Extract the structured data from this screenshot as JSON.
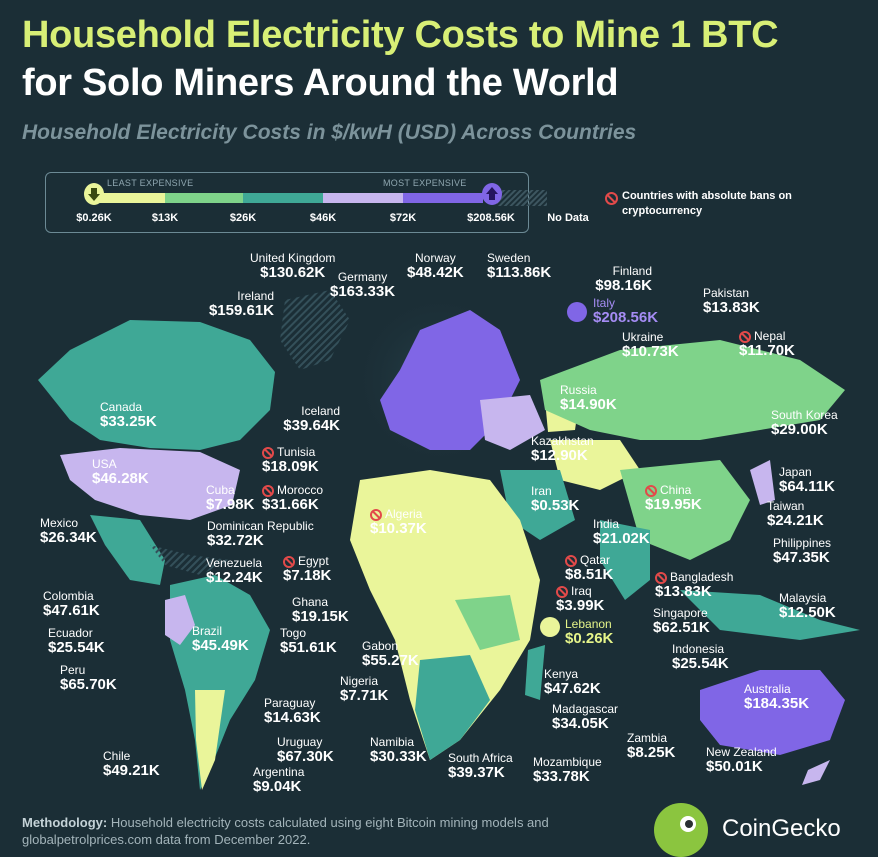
{
  "title_line1": "Household Electricity Costs to Mine 1 BTC",
  "title_line2": "for Solo Miners Around the World",
  "subtitle": "Household Electricity Costs in $/kwH (USD) Across Countries",
  "legend": {
    "least_label": "LEAST EXPENSIVE",
    "most_label": "MOST EXPENSIVE",
    "ticks": [
      "$0.26K",
      "$13K",
      "$26K",
      "$46K",
      "$72K",
      "$208.56K"
    ],
    "no_data": "No Data",
    "ban_note": "Countries with absolute bans on cryptocurrency",
    "colors": [
      "#eaf59a",
      "#7fd38a",
      "#3fa896",
      "#c7b6ee",
      "#8066e6"
    ]
  },
  "countries": [
    {
      "name": "United Kingdom",
      "value": "$130.62K"
    },
    {
      "name": "Germany",
      "value": "$163.33K"
    },
    {
      "name": "Norway",
      "value": "$48.42K"
    },
    {
      "name": "Sweden",
      "value": "$113.86K"
    },
    {
      "name": "Finland",
      "value": "$98.16K"
    },
    {
      "name": "Ireland",
      "value": "$159.61K"
    },
    {
      "name": "Italy",
      "value": "$208.56K"
    },
    {
      "name": "Pakistan",
      "value": "$13.83K"
    },
    {
      "name": "Nepal",
      "value": "$11.70K"
    },
    {
      "name": "Ukraine",
      "value": "$10.73K"
    },
    {
      "name": "Canada",
      "value": "$33.25K"
    },
    {
      "name": "Iceland",
      "value": "$39.64K"
    },
    {
      "name": "Russia",
      "value": "$14.90K"
    },
    {
      "name": "South Korea",
      "value": "$29.00K"
    },
    {
      "name": "Tunisia",
      "value": "$18.09K"
    },
    {
      "name": "Kazakhstan",
      "value": "$12.90K"
    },
    {
      "name": "USA",
      "value": "$46.28K"
    },
    {
      "name": "Japan",
      "value": "$64.11K"
    },
    {
      "name": "Cuba",
      "value": "$7.98K"
    },
    {
      "name": "Morocco",
      "value": "$31.66K"
    },
    {
      "name": "Iran",
      "value": "$0.53K"
    },
    {
      "name": "China",
      "value": "$19.95K"
    },
    {
      "name": "Taiwan",
      "value": "$24.21K"
    },
    {
      "name": "Mexico",
      "value": "$26.34K"
    },
    {
      "name": "Algeria",
      "value": "$10.37K"
    },
    {
      "name": "Dominican Republic",
      "value": "$32.72K"
    },
    {
      "name": "India",
      "value": "$21.02K"
    },
    {
      "name": "Philippines",
      "value": "$47.35K"
    },
    {
      "name": "Venezuela",
      "value": "$12.24K"
    },
    {
      "name": "Egypt",
      "value": "$7.18K"
    },
    {
      "name": "Qatar",
      "value": "$8.51K"
    },
    {
      "name": "Bangladesh",
      "value": "$13.83K"
    },
    {
      "name": "Colombia",
      "value": "$47.61K"
    },
    {
      "name": "Ghana",
      "value": "$19.15K"
    },
    {
      "name": "Iraq",
      "value": "$3.99K"
    },
    {
      "name": "Malaysia",
      "value": "$12.50K"
    },
    {
      "name": "Singapore",
      "value": "$62.51K"
    },
    {
      "name": "Ecuador",
      "value": "$25.54K"
    },
    {
      "name": "Brazil",
      "value": "$45.49K"
    },
    {
      "name": "Togo",
      "value": "$51.61K"
    },
    {
      "name": "Lebanon",
      "value": "$0.26K"
    },
    {
      "name": "Gabon",
      "value": "$55.27K"
    },
    {
      "name": "Indonesia",
      "value": "$25.54K"
    },
    {
      "name": "Peru",
      "value": "$65.70K"
    },
    {
      "name": "Nigeria",
      "value": "$7.71K"
    },
    {
      "name": "Kenya",
      "value": "$47.62K"
    },
    {
      "name": "Australia",
      "value": "$184.35K"
    },
    {
      "name": "Paraguay",
      "value": "$14.63K"
    },
    {
      "name": "Madagascar",
      "value": "$34.05K"
    },
    {
      "name": "Zambia",
      "value": "$8.25K"
    },
    {
      "name": "Chile",
      "value": "$49.21K"
    },
    {
      "name": "Uruguay",
      "value": "$67.30K"
    },
    {
      "name": "Namibia",
      "value": "$30.33K"
    },
    {
      "name": "South Africa",
      "value": "$39.37K"
    },
    {
      "name": "Mozambique",
      "value": "$33.78K"
    },
    {
      "name": "New Zealand",
      "value": "$50.01K"
    },
    {
      "name": "Argentina",
      "value": "$9.04K"
    }
  ],
  "methodology_label": "Methodology:",
  "methodology_text": "Household electricity costs calculated using eight Bitcoin mining models and globalpetrolprices.com data from December 2022.",
  "brand": "CoinGecko"
}
